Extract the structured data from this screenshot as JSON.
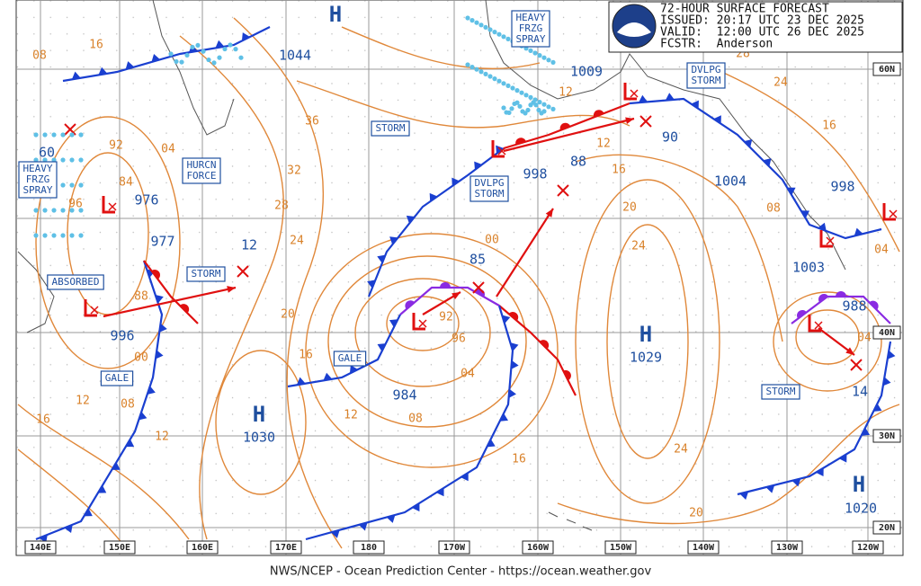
{
  "header": {
    "lines": [
      "72-HOUR SURFACE FORECAST",
      "ISSUED: 20:17 UTC 23 DEC 2025",
      "VALID:  12:00 UTC 26 DEC 2025",
      "FCSTR:  Anderson"
    ]
  },
  "footer": "NWS/NCEP - Ocean Prediction Center - https://ocean.weather.gov",
  "highs": [
    {
      "letter": "H",
      "pressure": "1044"
    },
    {
      "letter": "H",
      "pressure": "1029"
    },
    {
      "letter": "H",
      "pressure": "1030"
    },
    {
      "letter": "H",
      "pressure": "1020"
    }
  ],
  "low_pressures": [
    "1009",
    "976",
    "977",
    "996",
    "60",
    "998",
    "88",
    "90",
    "1004",
    "998",
    "85",
    "984",
    "1003",
    "988",
    "14",
    "12"
  ],
  "boxed_labels": [
    {
      "lines": [
        "HEAVY",
        "FRZG",
        "SPRAY"
      ]
    },
    {
      "lines": [
        "HEAVY",
        "FRZG",
        "SPRAY"
      ]
    },
    {
      "lines": [
        "HURCN",
        "FORCE"
      ]
    },
    {
      "lines": [
        "STORM"
      ]
    },
    {
      "lines": [
        "STORM"
      ]
    },
    {
      "lines": [
        "DVLPG",
        "STORM"
      ]
    },
    {
      "lines": [
        "DVLPG",
        "STORM"
      ]
    },
    {
      "lines": [
        "STORM"
      ]
    },
    {
      "lines": [
        "GALE"
      ]
    },
    {
      "lines": [
        "GALE"
      ]
    },
    {
      "lines": [
        "ABSORBED"
      ]
    }
  ],
  "isobar_labels": [
    "16",
    "08",
    "36",
    "32",
    "28",
    "24",
    "20",
    "16",
    "12",
    "16",
    "08",
    "00",
    "88",
    "92",
    "84",
    "96",
    "04",
    "12",
    "12",
    "08",
    "04",
    "96",
    "92",
    "00",
    "16",
    "20",
    "24",
    "20",
    "24",
    "16",
    "12",
    "12",
    "28",
    "24",
    "16",
    "08",
    "04",
    "04"
  ],
  "lat_labels": [
    "60N",
    "40N",
    "30N",
    "20N"
  ],
  "lon_labels": [
    "140E",
    "150E",
    "160E",
    "170E",
    "180",
    "170W",
    "160W",
    "150W",
    "140W",
    "130W",
    "120W"
  ]
}
